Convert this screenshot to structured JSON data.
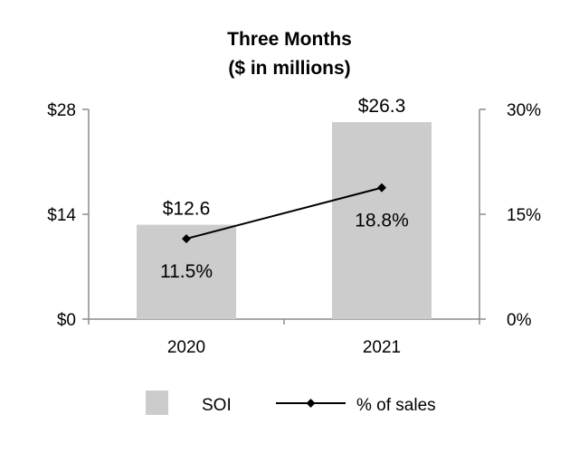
{
  "chart_data": {
    "type": "bar",
    "title": "Three Months",
    "subtitle": "($ in millions)",
    "categories": [
      "2020",
      "2021"
    ],
    "series": [
      {
        "name": "SOI",
        "type": "bar",
        "axis": "left",
        "values": [
          12.6,
          26.3
        ],
        "labels": [
          "$12.6",
          "$26.3"
        ],
        "color": "#cccccc"
      },
      {
        "name": "% of sales",
        "type": "line",
        "axis": "right",
        "values": [
          11.5,
          18.8
        ],
        "labels": [
          "11.5%",
          "18.8%"
        ],
        "color": "#000000",
        "marker": "diamond"
      }
    ],
    "y_left": {
      "range": [
        0,
        28
      ],
      "ticks": [
        0,
        14,
        28
      ],
      "tick_labels": [
        "$0",
        "$14",
        "$28"
      ]
    },
    "y_right": {
      "range": [
        0,
        30
      ],
      "ticks": [
        0,
        15,
        30
      ],
      "tick_labels": [
        "0%",
        "15%",
        "30%"
      ]
    },
    "grid": false,
    "legend": "bottom"
  }
}
